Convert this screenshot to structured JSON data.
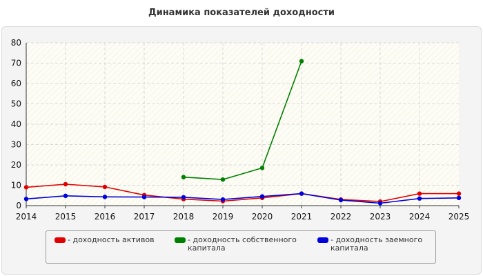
{
  "chart_data": {
    "type": "line",
    "title": "Динамика показателей доходности",
    "x": [
      "2014",
      "2015",
      "2016",
      "2017",
      "2018",
      "2019",
      "2020",
      "2021",
      "2022",
      "2023",
      "2024",
      "2025"
    ],
    "ylim": [
      0,
      80
    ],
    "yticks": [
      "0",
      "10",
      "20",
      "30",
      "40",
      "50",
      "60",
      "70",
      "80"
    ],
    "grid": true,
    "legend_position": "bottom",
    "series": [
      {
        "name": "- доходность активов",
        "color": "#e00000",
        "values": [
          9,
          10.5,
          9.2,
          5.2,
          3.2,
          2.2,
          3.8,
          5.9,
          3.0,
          2.0,
          5.9,
          5.9
        ]
      },
      {
        "name": "- доходность собственного капитала",
        "color": "#008000",
        "values": [
          null,
          null,
          null,
          null,
          14,
          12.8,
          18.5,
          71,
          null,
          null,
          null,
          null
        ]
      },
      {
        "name": "- доходность заемного капитала",
        "color": "#0000dd",
        "values": [
          3.3,
          4.8,
          4.3,
          4.2,
          4.1,
          3.0,
          4.5,
          5.9,
          2.7,
          1.2,
          3.5,
          3.8
        ]
      }
    ]
  }
}
